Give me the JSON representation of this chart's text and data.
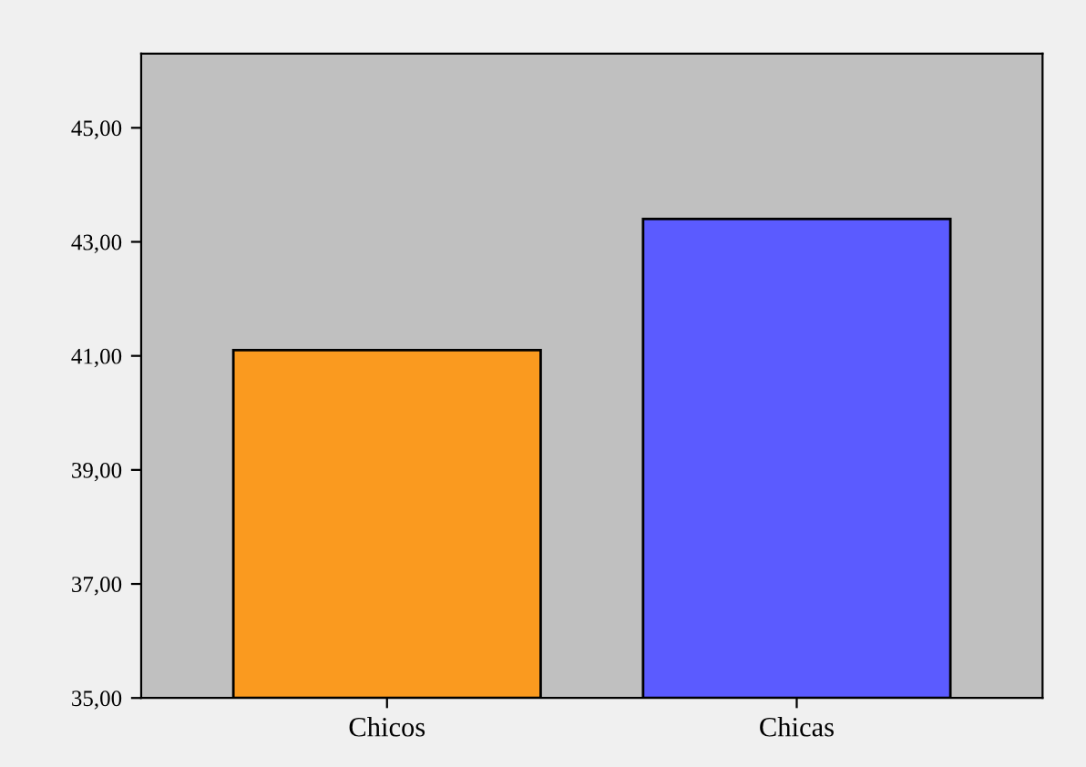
{
  "chart_data": {
    "type": "bar",
    "categories": [
      "Chicos",
      "Chicas"
    ],
    "values": [
      41.1,
      43.4
    ],
    "colors": [
      "#fa9a1f",
      "#5b5bff"
    ],
    "ylim": [
      35,
      46.3
    ],
    "yticks": [
      {
        "value": 35,
        "label": "35,00"
      },
      {
        "value": 37,
        "label": "37,00"
      },
      {
        "value": 39,
        "label": "39,00"
      },
      {
        "value": 41,
        "label": "41,00"
      },
      {
        "value": 43,
        "label": "43,00"
      },
      {
        "value": 45,
        "label": "45,00"
      }
    ],
    "grid": false
  }
}
